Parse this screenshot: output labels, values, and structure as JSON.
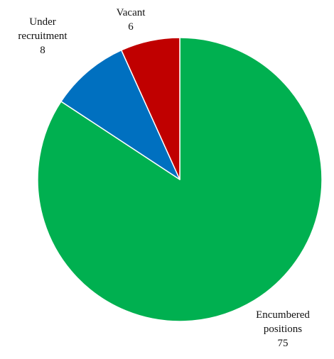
{
  "chart_data": {
    "type": "pie",
    "title": "",
    "categories": [
      "Encumbered positions",
      "Under recruitment",
      "Vacant"
    ],
    "values": [
      75,
      8,
      6
    ],
    "colors": [
      "#00b050",
      "#0070c0",
      "#c00000"
    ],
    "label_lines": [
      [
        "Encumbered",
        "positions",
        "75"
      ],
      [
        "Under",
        "recruitment",
        "8"
      ],
      [
        "Vacant",
        "6"
      ]
    ],
    "start": "12 o'clock",
    "direction": "clockwise",
    "legend": "none"
  }
}
